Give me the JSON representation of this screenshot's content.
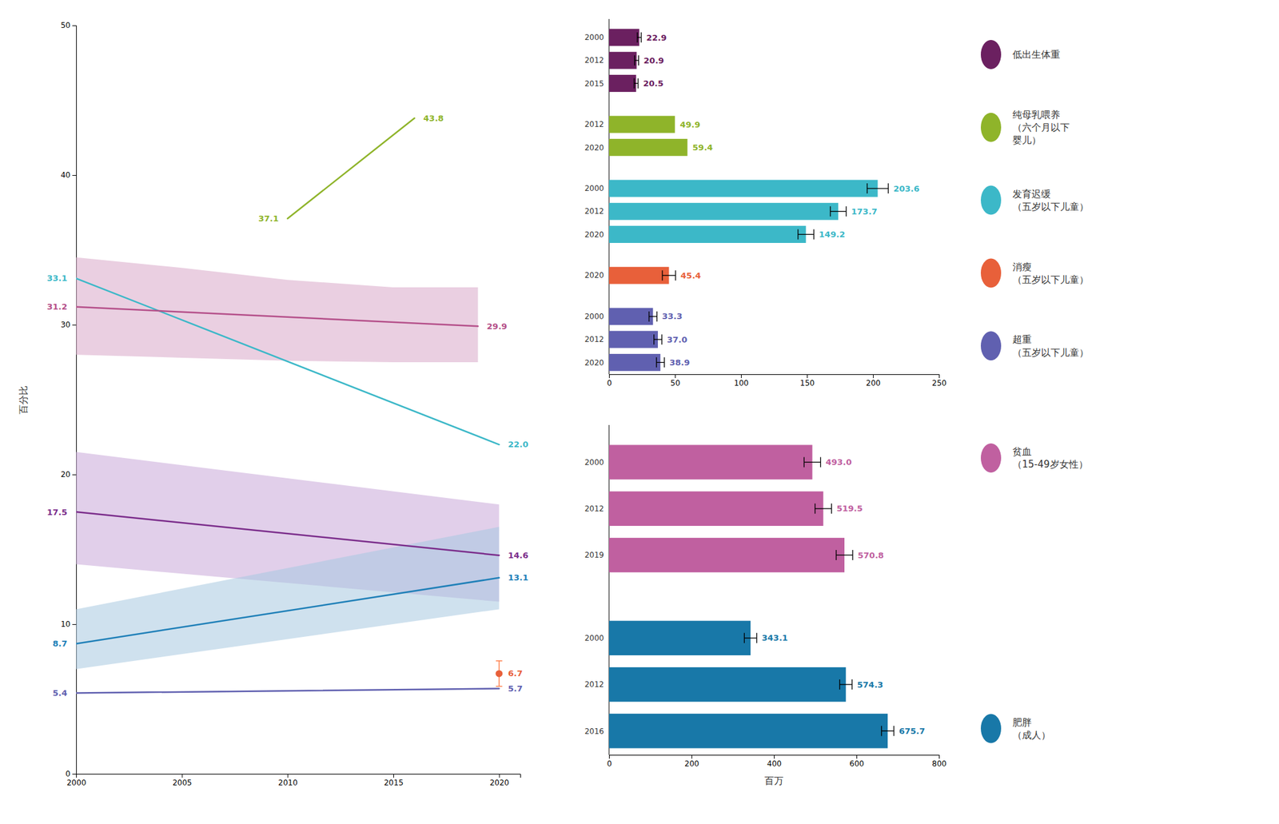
{
  "chart_data": [
    {
      "type": "line",
      "ylabel": "百分比",
      "xlim": [
        2000,
        2021
      ],
      "xticks": [
        2000,
        2005,
        2010,
        2015,
        2020
      ],
      "ylim": [
        0,
        50
      ],
      "yticks": [
        0,
        10,
        20,
        30,
        40,
        50
      ],
      "data_labels": true,
      "series": [
        {
          "type": "area",
          "color": "#d8a8c8",
          "x": [
            2000,
            2005,
            2010,
            2015,
            2019
          ],
          "lower": [
            28.0,
            27.8,
            27.6,
            27.5,
            27.5
          ],
          "upper": [
            34.5,
            33.8,
            33.0,
            32.5,
            32.5
          ]
        },
        {
          "type": "area",
          "color": "#c8a8d8",
          "x": [
            2000,
            2020
          ],
          "lower": [
            14.0,
            11.5
          ],
          "upper": [
            21.5,
            18.0
          ]
        },
        {
          "type": "area",
          "color": "#a8c8e0",
          "x": [
            2000,
            2020
          ],
          "lower": [
            7.0,
            11.0
          ],
          "upper": [
            11.0,
            16.5
          ]
        },
        {
          "type": "line",
          "color": "#3cb8c8",
          "x": [
            2000,
            2020
          ],
          "values": [
            33.1,
            22.0
          ],
          "value_labels": [
            "33.1",
            "22.0"
          ]
        },
        {
          "type": "line",
          "color": "#b5508a",
          "x": [
            2000,
            2019
          ],
          "values": [
            31.2,
            29.9
          ],
          "value_labels": [
            "31.2",
            "29.9"
          ]
        },
        {
          "type": "line",
          "color": "#8fb42a",
          "x": [
            2010,
            2016
          ],
          "values": [
            37.1,
            43.8
          ],
          "value_labels": [
            "37.1",
            "43.8"
          ]
        },
        {
          "type": "line",
          "color": "#7b2d8b",
          "x": [
            2000,
            2020
          ],
          "values": [
            17.5,
            14.6
          ],
          "value_labels": [
            "17.5",
            "14.6"
          ]
        },
        {
          "type": "line",
          "color": "#2080b8",
          "x": [
            2000,
            2020
          ],
          "values": [
            8.7,
            13.1
          ],
          "value_labels": [
            "8.7",
            "13.1"
          ]
        },
        {
          "type": "line",
          "color": "#6060b0",
          "x": [
            2000,
            2020
          ],
          "values": [
            5.4,
            5.7
          ],
          "value_labels": [
            "5.4",
            "5.7"
          ]
        },
        {
          "type": "scatter",
          "marker": "circle",
          "color": "#e8603a",
          "x": [
            2020
          ],
          "values": [
            6.7
          ],
          "errors": [
            0.85
          ],
          "value_labels": [
            "6.7"
          ]
        }
      ]
    },
    {
      "type": "bar",
      "orientation": "horizontal",
      "xlim": [
        0,
        250
      ],
      "xticks": [
        0,
        50,
        100,
        150,
        200,
        250
      ],
      "data_labels": true,
      "legend": "right",
      "categories": [
        "2000",
        "2012",
        "2015",
        "2012",
        "2020",
        "2000",
        "2012",
        "2020",
        "2020",
        "2000",
        "2012",
        "2020"
      ],
      "series": [
        {
          "name": "低出生体重",
          "color": "#6b2060",
          "values": [
            22.9,
            20.9,
            20.5,
            null,
            null,
            null,
            null,
            null,
            null,
            null,
            null,
            null
          ],
          "errors": [
            1.5,
            1.5,
            1.5,
            null,
            null,
            null,
            null,
            null,
            null,
            null,
            null,
            null
          ],
          "value_labels": [
            "22.9",
            "20.9",
            "20.5",
            null,
            null,
            null,
            null,
            null,
            null,
            null,
            null,
            null
          ]
        },
        {
          "name": "纯母乳喂养\n（六个月以下\n婴儿）",
          "color": "#8fb42a",
          "values": [
            null,
            null,
            null,
            49.9,
            59.4,
            null,
            null,
            null,
            null,
            null,
            null,
            null
          ],
          "errors": [
            null,
            null,
            null,
            0,
            0,
            null,
            null,
            null,
            null,
            null,
            null,
            null
          ],
          "value_labels": [
            null,
            null,
            null,
            "49.9",
            "59.4",
            null,
            null,
            null,
            null,
            null,
            null,
            null
          ]
        },
        {
          "name": "发育迟缓\n（五岁以下儿童）",
          "color": "#3cb8c8",
          "values": [
            null,
            null,
            null,
            null,
            null,
            203.6,
            173.7,
            149.2,
            null,
            null,
            null,
            null
          ],
          "errors": [
            null,
            null,
            null,
            null,
            null,
            8,
            6,
            6,
            null,
            null,
            null,
            null
          ],
          "value_labels": [
            null,
            null,
            null,
            null,
            null,
            "203.6",
            "173.7",
            "149.2",
            null,
            null,
            null,
            null
          ]
        },
        {
          "name": "消瘦\n（五岁以下儿童）",
          "color": "#e8603a",
          "values": [
            null,
            null,
            null,
            null,
            null,
            null,
            null,
            null,
            45.4,
            null,
            null,
            null
          ],
          "errors": [
            null,
            null,
            null,
            null,
            null,
            null,
            null,
            null,
            5,
            null,
            null,
            null
          ],
          "value_labels": [
            null,
            null,
            null,
            null,
            null,
            null,
            null,
            null,
            "45.4",
            null,
            null,
            null
          ]
        },
        {
          "name": "超重\n（五岁以下儿童）",
          "color": "#6060b0",
          "values": [
            null,
            null,
            null,
            null,
            null,
            null,
            null,
            null,
            null,
            33.3,
            37.0,
            38.9
          ],
          "errors": [
            null,
            null,
            null,
            null,
            null,
            null,
            null,
            null,
            null,
            3,
            3,
            3
          ],
          "value_labels": [
            null,
            null,
            null,
            null,
            null,
            null,
            null,
            null,
            null,
            "33.3",
            "37.0",
            "38.9"
          ]
        }
      ]
    },
    {
      "type": "bar",
      "orientation": "horizontal",
      "xlabel": "百万",
      "xlim": [
        0,
        800
      ],
      "xticks": [
        0,
        200,
        400,
        600,
        800
      ],
      "data_labels": true,
      "legend": "right",
      "categories": [
        "2000",
        "2012",
        "2019",
        "2000",
        "2012",
        "2016"
      ],
      "series": [
        {
          "name": "贫血\n（15-49岁女性）",
          "color": "#c060a0",
          "values": [
            493.0,
            519.5,
            570.8,
            null,
            null,
            null
          ],
          "errors": [
            20,
            20,
            20,
            null,
            null,
            null
          ],
          "value_labels": [
            "493.0",
            "519.5",
            "570.8",
            null,
            null,
            null
          ]
        },
        {
          "name": "肥胖\n（成人）",
          "color": "#1878a8",
          "values": [
            null,
            null,
            null,
            343.1,
            574.3,
            675.7
          ],
          "errors": [
            null,
            null,
            null,
            15,
            15,
            15
          ],
          "value_labels": [
            null,
            null,
            null,
            "343.1",
            "574.3",
            "675.7"
          ]
        }
      ]
    }
  ]
}
